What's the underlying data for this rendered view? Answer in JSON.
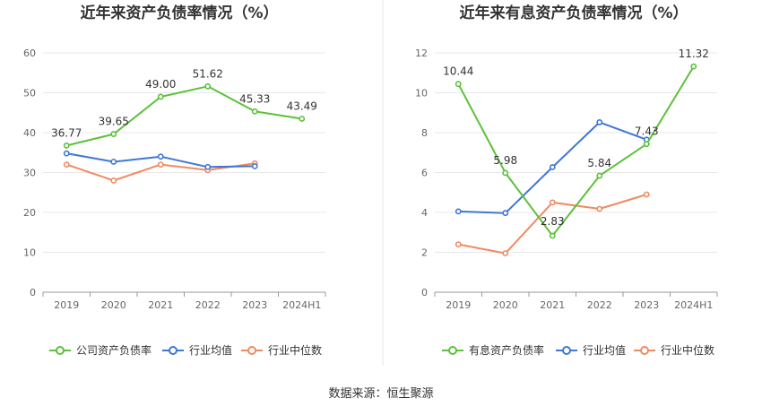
{
  "source_text": "数据来源：恒生聚源",
  "chart_data": [
    {
      "type": "line",
      "title": "近年来资产负债率情况（%）",
      "xlabel": "",
      "ylabel": "",
      "categories": [
        "2019",
        "2020",
        "2021",
        "2022",
        "2023",
        "2024H1"
      ],
      "ylim": [
        0,
        60
      ],
      "yticks": [
        0,
        10,
        20,
        30,
        40,
        50,
        60
      ],
      "grid": true,
      "legend_position": "bottom",
      "series": [
        {
          "name": "公司资产负债率",
          "color": "#5cc13a",
          "labels": true,
          "values": [
            36.77,
            39.65,
            49.0,
            51.62,
            45.33,
            43.49
          ]
        },
        {
          "name": "行业均值",
          "color": "#3f77d6",
          "labels": false,
          "values": [
            34.8,
            32.7,
            34.0,
            31.4,
            31.6,
            null
          ]
        },
        {
          "name": "行业中位数",
          "color": "#f08a62",
          "labels": false,
          "values": [
            32.0,
            28.0,
            32.0,
            30.6,
            32.3,
            null
          ]
        }
      ]
    },
    {
      "type": "line",
      "title": "近年来有息资产负债率情况（%）",
      "xlabel": "",
      "ylabel": "",
      "categories": [
        "2019",
        "2020",
        "2021",
        "2022",
        "2023",
        "2024H1"
      ],
      "ylim": [
        0,
        12
      ],
      "yticks": [
        0,
        2,
        4,
        6,
        8,
        10,
        12
      ],
      "grid": true,
      "legend_position": "bottom",
      "series": [
        {
          "name": "有息资产负债率",
          "color": "#5cc13a",
          "labels": true,
          "values": [
            10.44,
            5.98,
            2.83,
            5.84,
            7.43,
            11.32
          ]
        },
        {
          "name": "行业均值",
          "color": "#3f77d6",
          "labels": false,
          "values": [
            4.05,
            3.97,
            6.27,
            8.52,
            7.65,
            null
          ]
        },
        {
          "name": "行业中位数",
          "color": "#f08a62",
          "labels": false,
          "values": [
            2.4,
            1.95,
            4.5,
            4.18,
            4.9,
            null
          ]
        }
      ]
    }
  ]
}
